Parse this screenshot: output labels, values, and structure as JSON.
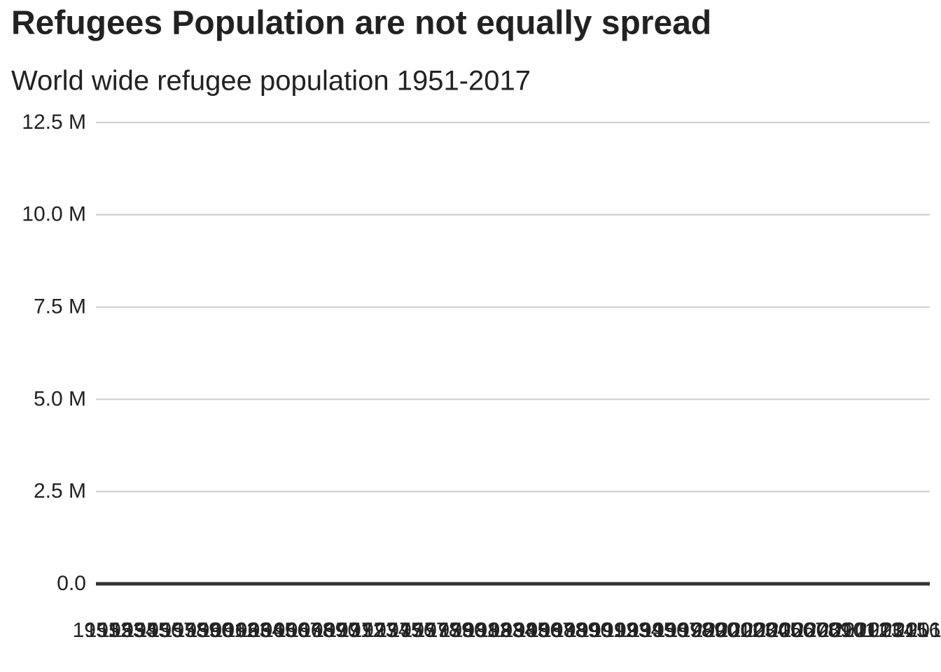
{
  "chart_data": {
    "type": "line",
    "title": "Refugees Population are not equally spread",
    "subtitle": "World wide refugee population 1951-2017",
    "categories": [
      "1951",
      "1952",
      "1953",
      "1954",
      "1955",
      "1956",
      "1957",
      "1958",
      "1959",
      "1960",
      "1961",
      "1962",
      "1963",
      "1964",
      "1965",
      "1966",
      "1967",
      "1968",
      "1969",
      "1970",
      "1971",
      "1972",
      "1973",
      "1974",
      "1975",
      "1976",
      "1977",
      "1978",
      "1979",
      "1980",
      "1981",
      "1982",
      "1983",
      "1984",
      "1985",
      "1986",
      "1987",
      "1988",
      "1989",
      "1990",
      "1991",
      "1992",
      "1993",
      "1994",
      "1995",
      "1996",
      "1997",
      "1998",
      "1999",
      "2000",
      "2001",
      "2002",
      "2003",
      "2004",
      "2005",
      "2006",
      "2007",
      "2008",
      "2009",
      "2010",
      "2011",
      "2012",
      "2013",
      "2014",
      "2015",
      "2016",
      "2017"
    ],
    "ylim": [
      0,
      12500000
    ],
    "yticks": [
      {
        "value": 0,
        "label": "0.0"
      },
      {
        "value": 2500000,
        "label": "2.5 M"
      },
      {
        "value": 5000000,
        "label": "5.0 M"
      },
      {
        "value": 7500000,
        "label": "7.5 M"
      },
      {
        "value": 10000000,
        "label": "10.0 M"
      },
      {
        "value": 12500000,
        "label": "12.5 M"
      }
    ],
    "grid": true
  }
}
